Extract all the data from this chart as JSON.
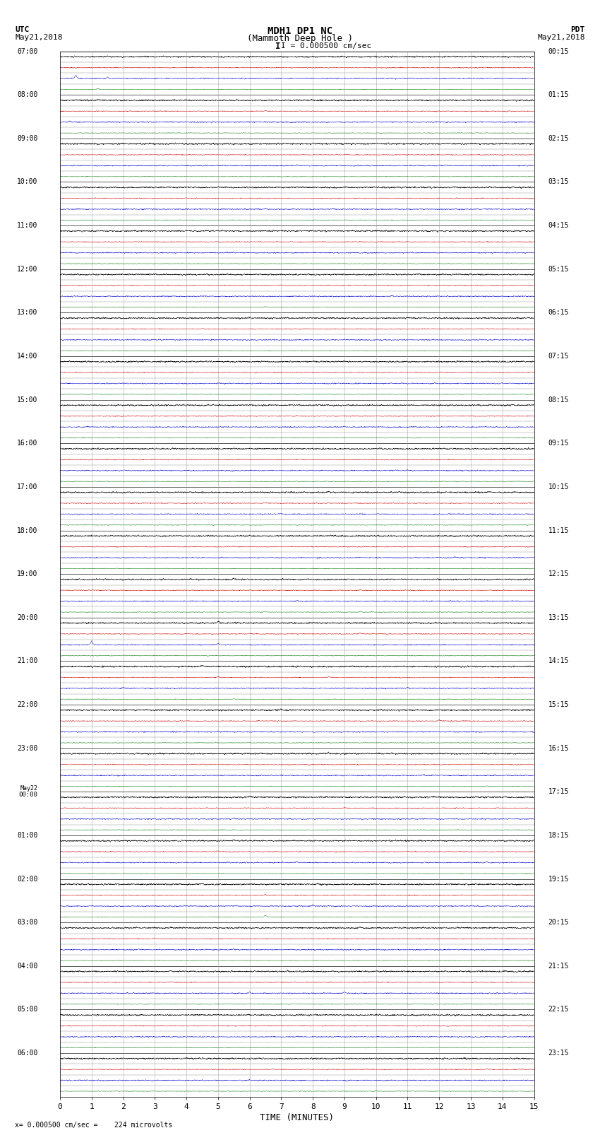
{
  "title_line1": "MDH1 DP1 NC",
  "title_line2": "(Mammoth Deep Hole )",
  "scale_text": "I = 0.000500 cm/sec",
  "utc_label": "UTC",
  "utc_date": "May21,2018",
  "pdt_label": "PDT",
  "pdt_date": "May21,2018",
  "xlabel": "TIME (MINUTES)",
  "bottom_note": "= 0.000500 cm/sec =    224 microvolts",
  "x_min": 0,
  "x_max": 15,
  "x_ticks": [
    0,
    1,
    2,
    3,
    4,
    5,
    6,
    7,
    8,
    9,
    10,
    11,
    12,
    13,
    14,
    15
  ],
  "num_groups": 24,
  "left_labels": [
    "07:00",
    "08:00",
    "09:00",
    "10:00",
    "11:00",
    "12:00",
    "13:00",
    "14:00",
    "15:00",
    "16:00",
    "17:00",
    "18:00",
    "19:00",
    "20:00",
    "21:00",
    "22:00",
    "23:00",
    "May22\n00:00",
    "01:00",
    "02:00",
    "03:00",
    "04:00",
    "05:00",
    "06:00"
  ],
  "right_labels": [
    "00:15",
    "01:15",
    "02:15",
    "03:15",
    "04:15",
    "05:15",
    "06:15",
    "07:15",
    "08:15",
    "09:15",
    "10:15",
    "11:15",
    "12:15",
    "13:15",
    "14:15",
    "15:15",
    "16:15",
    "17:15",
    "18:15",
    "19:15",
    "20:15",
    "21:15",
    "22:15",
    "23:15"
  ],
  "bg_color": "#ffffff",
  "trace_color_black": "#000000",
  "trace_color_red": "#cc0000",
  "trace_color_blue": "#0000cc",
  "trace_color_green": "#007700",
  "grid_color": "#999999",
  "subgrid_color": "#cccccc"
}
